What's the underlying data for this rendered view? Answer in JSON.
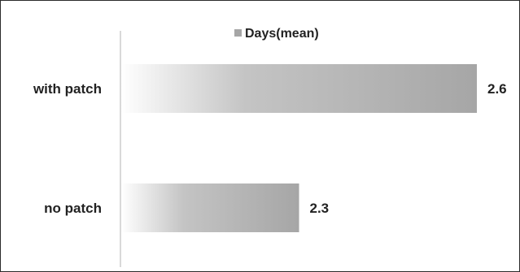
{
  "chart_data": {
    "type": "bar",
    "orientation": "horizontal",
    "categories": [
      "with patch",
      "no patch"
    ],
    "series": [
      {
        "name": "Days(mean)",
        "values": [
          2.6,
          2.3
        ]
      }
    ],
    "data_labels": [
      "2.6",
      "2.3"
    ],
    "title": "",
    "xlabel": "",
    "ylabel": "",
    "xlim": [
      2.0,
      2.6
    ],
    "grid": false,
    "legend_position": "top",
    "colors": {
      "bar_start": "#ffffff",
      "bar_mid": "#c4c4c4",
      "bar_end": "#a6a6a6",
      "axis": "#d9d9d9",
      "text": "#222222",
      "legend_swatch": "#a6a6a6"
    }
  }
}
